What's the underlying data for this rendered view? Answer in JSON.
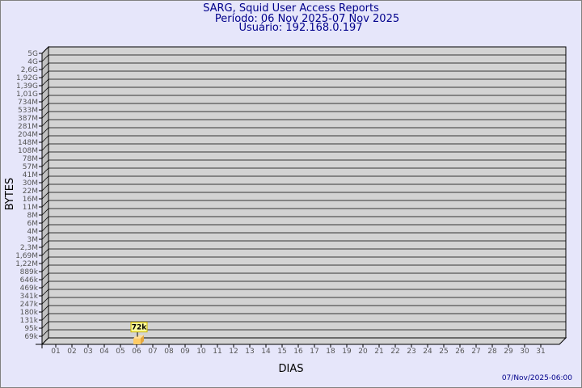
{
  "header": {
    "title": "SARG, Squid User Access Reports",
    "period": "Período: 06 Nov 2025-07 Nov 2025",
    "user": "Usuário: 192.168.0.197"
  },
  "footer": {
    "timestamp": "07/Nov/2025-06:00"
  },
  "colors": {
    "background": "#e6e6fa",
    "wall": "#d3d3d3",
    "bar": "#ffcc66",
    "title": "#00008b"
  },
  "chart_data": {
    "type": "bar",
    "xlabel": "DIAS",
    "ylabel": "BYTES",
    "y_tick_labels": [
      "5G",
      "4G",
      "2,6G",
      "1,92G",
      "1,39G",
      "1,01G",
      "734M",
      "533M",
      "387M",
      "281M",
      "204M",
      "148M",
      "108M",
      "78M",
      "57M",
      "41M",
      "30M",
      "22M",
      "16M",
      "11M",
      "8M",
      "6M",
      "4M",
      "3M",
      "2,3M",
      "1,69M",
      "1,22M",
      "889k",
      "646k",
      "469k",
      "341k",
      "247k",
      "180k",
      "131k",
      "95k",
      "69k"
    ],
    "categories": [
      "01",
      "02",
      "03",
      "04",
      "05",
      "06",
      "07",
      "08",
      "09",
      "10",
      "11",
      "12",
      "13",
      "14",
      "15",
      "16",
      "17",
      "18",
      "19",
      "20",
      "21",
      "22",
      "23",
      "24",
      "25",
      "26",
      "27",
      "28",
      "29",
      "30",
      "31"
    ],
    "bars": [
      {
        "category": "06",
        "value": 72000,
        "label": "72k"
      }
    ],
    "grid": true
  }
}
